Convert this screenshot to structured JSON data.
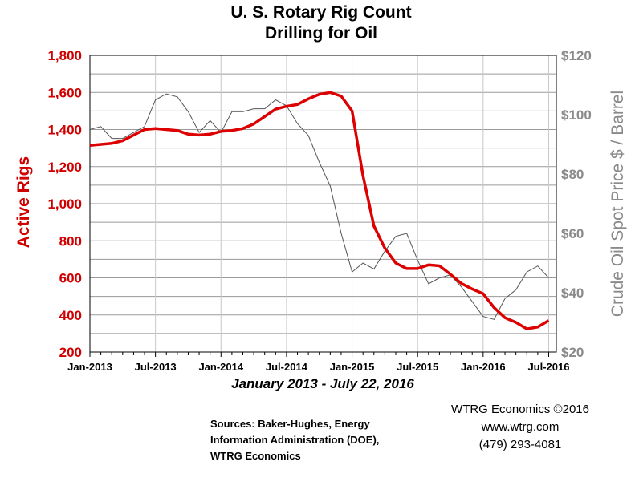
{
  "chart_data": {
    "type": "line",
    "title": "U. S. Rotary Rig Count",
    "title_line2": "Drilling for Oil",
    "subtitle": "January 2013 - July 22, 2016",
    "ylabel_left": "Active Rigs",
    "ylabel_right": "Crude Oil Spot Price $ / Barrel",
    "y_left_range": [
      200,
      1800
    ],
    "y_right_range": [
      20,
      120
    ],
    "y_left_ticks": [
      "1,800",
      "1,600",
      "1,400",
      "1,200",
      "1,000",
      "800",
      "600",
      "400",
      "200"
    ],
    "y_right_ticks": [
      "$120",
      "$100",
      "$80",
      "$60",
      "$40",
      "$20"
    ],
    "x_range": [
      "2013-01",
      "2016-07"
    ],
    "x_ticks": [
      "Jan-2013",
      "Jul-2013",
      "Jan-2014",
      "Jul-2014",
      "Jan-2015",
      "Jul-2015",
      "Jan-2016",
      "Jul-2016"
    ],
    "grid": true,
    "series": [
      {
        "name": "Active Rigs",
        "axis": "left",
        "color": "#dd0000",
        "points": [
          [
            "2013-01",
            1315
          ],
          [
            "2013-02",
            1320
          ],
          [
            "2013-03",
            1325
          ],
          [
            "2013-04",
            1340
          ],
          [
            "2013-05",
            1370
          ],
          [
            "2013-06",
            1400
          ],
          [
            "2013-07",
            1405
          ],
          [
            "2013-08",
            1400
          ],
          [
            "2013-09",
            1395
          ],
          [
            "2013-10",
            1375
          ],
          [
            "2013-11",
            1370
          ],
          [
            "2013-12",
            1375
          ],
          [
            "2014-01",
            1390
          ],
          [
            "2014-02",
            1395
          ],
          [
            "2014-03",
            1405
          ],
          [
            "2014-04",
            1430
          ],
          [
            "2014-05",
            1470
          ],
          [
            "2014-06",
            1510
          ],
          [
            "2014-07",
            1525
          ],
          [
            "2014-08",
            1535
          ],
          [
            "2014-09",
            1565
          ],
          [
            "2014-10",
            1590
          ],
          [
            "2014-11",
            1600
          ],
          [
            "2014-12",
            1580
          ],
          [
            "2015-01",
            1500
          ],
          [
            "2015-02",
            1150
          ],
          [
            "2015-03",
            880
          ],
          [
            "2015-04",
            760
          ],
          [
            "2015-05",
            680
          ],
          [
            "2015-06",
            650
          ],
          [
            "2015-07",
            650
          ],
          [
            "2015-08",
            670
          ],
          [
            "2015-09",
            665
          ],
          [
            "2015-10",
            620
          ],
          [
            "2015-11",
            570
          ],
          [
            "2015-12",
            540
          ],
          [
            "2016-01",
            515
          ],
          [
            "2016-02",
            440
          ],
          [
            "2016-03",
            385
          ],
          [
            "2016-04",
            360
          ],
          [
            "2016-05",
            325
          ],
          [
            "2016-06",
            335
          ],
          [
            "2016-07",
            370
          ]
        ]
      },
      {
        "name": "Crude Oil Spot Price $ / Barrel",
        "axis": "right",
        "color": "#555555",
        "points": [
          [
            "2013-01",
            95
          ],
          [
            "2013-02",
            96
          ],
          [
            "2013-03",
            92
          ],
          [
            "2013-04",
            92
          ],
          [
            "2013-05",
            94
          ],
          [
            "2013-06",
            96
          ],
          [
            "2013-07",
            105
          ],
          [
            "2013-08",
            107
          ],
          [
            "2013-09",
            106
          ],
          [
            "2013-10",
            101
          ],
          [
            "2013-11",
            94
          ],
          [
            "2013-12",
            98
          ],
          [
            "2014-01",
            94
          ],
          [
            "2014-02",
            101
          ],
          [
            "2014-03",
            101
          ],
          [
            "2014-04",
            102
          ],
          [
            "2014-05",
            102
          ],
          [
            "2014-06",
            105
          ],
          [
            "2014-07",
            103
          ],
          [
            "2014-08",
            97
          ],
          [
            "2014-09",
            93
          ],
          [
            "2014-10",
            84
          ],
          [
            "2014-11",
            76
          ],
          [
            "2014-12",
            60
          ],
          [
            "2015-01",
            47
          ],
          [
            "2015-02",
            50
          ],
          [
            "2015-03",
            48
          ],
          [
            "2015-04",
            54
          ],
          [
            "2015-05",
            59
          ],
          [
            "2015-06",
            60
          ],
          [
            "2015-07",
            51
          ],
          [
            "2015-08",
            43
          ],
          [
            "2015-09",
            45
          ],
          [
            "2015-10",
            46
          ],
          [
            "2015-11",
            42
          ],
          [
            "2015-12",
            37
          ],
          [
            "2016-01",
            32
          ],
          [
            "2016-02",
            31
          ],
          [
            "2016-03",
            38
          ],
          [
            "2016-04",
            41
          ],
          [
            "2016-05",
            47
          ],
          [
            "2016-06",
            49
          ],
          [
            "2016-07",
            45
          ]
        ]
      }
    ]
  },
  "credits": {
    "company": "WTRG Economics  ©2016",
    "website": "www.wtrg.com",
    "phone": "(479) 293-4081"
  },
  "sources": {
    "line1": "Sources: Baker-Hughes, Energy",
    "line2": "Information Administration (DOE),",
    "line3": "WTRG Economics"
  }
}
